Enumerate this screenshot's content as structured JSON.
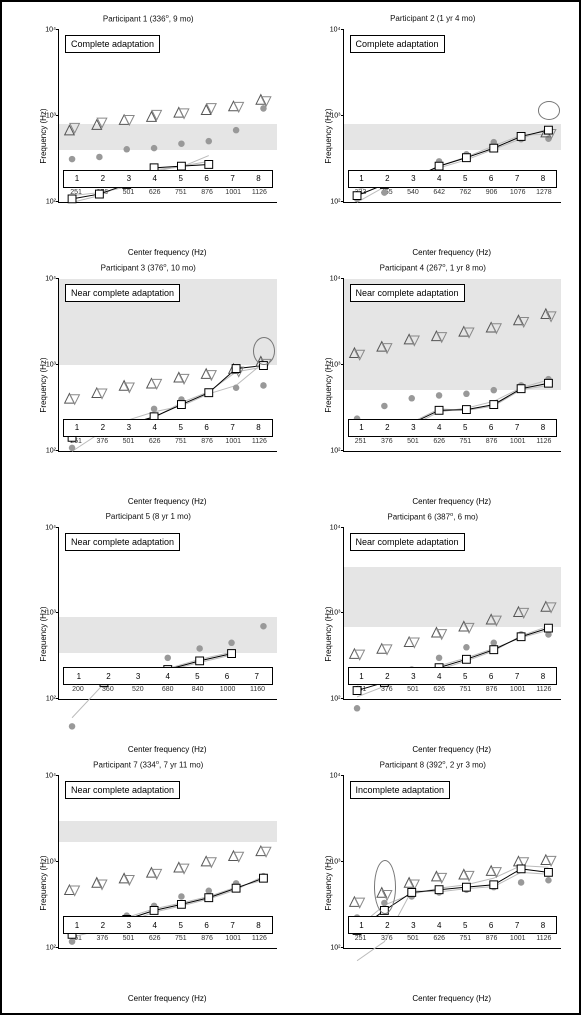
{
  "figure": {
    "background_color": "#ffffff",
    "frame_border_color": "#000000",
    "shade_color": "#e5e5e5",
    "grayline_color": "#bbbbbb",
    "mainline_color": "#000000",
    "marker_fill": "#ffffff",
    "dot_color": "#999999",
    "triangle_color": "#555555",
    "triangle_down_color": "#888888",
    "ellipse_color": "#777777",
    "yaxis_label": "Frequency (Hz)",
    "xaxis_label": "Center frequency (Hz)",
    "y_ticks": [
      100,
      1000,
      10000
    ],
    "y_tick_labels": [
      "10²",
      "10³",
      "10⁴"
    ],
    "x_numbers": [
      1,
      2,
      3,
      4,
      5,
      6,
      7,
      8
    ],
    "panels": [
      {
        "id": "p1",
        "title": "Participant 1 (336°, 9 mo)",
        "badge": "Complete adaptation",
        "x_ticks": [
          251,
          376,
          501,
          626,
          751,
          876,
          1001,
          1126
        ],
        "shade": [
          400,
          800
        ],
        "main": [
          280,
          310,
          380,
          540,
          560,
          580,
          null,
          null
        ],
        "gray1": [
          260,
          300,
          390,
          520,
          550,
          700,
          null,
          null
        ],
        "gray2": [
          300,
          320,
          360,
          500,
          560,
          620,
          null,
          null
        ],
        "tri_up": [
          1200,
          1350,
          1500,
          1600,
          1750,
          1850,
          2000,
          2300
        ],
        "tri_dn": [
          1250,
          1400,
          1480,
          1650,
          1700,
          1900,
          1950,
          2200
        ],
        "dots": [
          650,
          680,
          800,
          820,
          900,
          950,
          1200,
          1900
        ],
        "ellipse": null
      },
      {
        "id": "p2",
        "title": "Participant 2 (1 yr 4 mo)",
        "badge": "Complete adaptation",
        "x_ticks": [
          333,
          455,
          540,
          642,
          762,
          906,
          1076,
          1278
        ],
        "shade": [
          400,
          800
        ],
        "main": [
          300,
          380,
          430,
          560,
          670,
          820,
          1050,
          1200
        ],
        "gray1": [
          260,
          360,
          420,
          560,
          680,
          860,
          1080,
          1100
        ],
        "gray2": [
          340,
          400,
          450,
          540,
          640,
          800,
          1000,
          1250
        ],
        "tri_up": [
          null,
          null,
          null,
          null,
          null,
          null,
          null,
          1150
        ],
        "tri_dn": [
          null,
          null,
          null,
          null,
          null,
          null,
          null,
          1100
        ],
        "dots": [
          280,
          320,
          420,
          620,
          720,
          930,
          990,
          1000
        ],
        "ellipse": {
          "x_idx": 7,
          "y_low": 900,
          "y_high": 1400
        }
      },
      {
        "id": "p3",
        "title": "Participant 3 (376°, 10 mo)",
        "badge": "Near complete adaptation",
        "x_ticks": [
          251,
          376,
          501,
          626,
          751,
          876,
          1001,
          1126
        ],
        "shade": [
          1000,
          10000
        ],
        "main": [
          350,
          400,
          460,
          540,
          700,
          900,
          1500,
          1600
        ],
        "gray1": [
          260,
          380,
          440,
          530,
          730,
          920,
          1400,
          1550
        ],
        "gray2": [
          400,
          420,
          500,
          600,
          680,
          880,
          1050,
          1700
        ],
        "tri_up": [
          800,
          900,
          1050,
          1100,
          1250,
          1350,
          1500,
          1750
        ],
        "tri_dn": [
          780,
          880,
          1000,
          1080,
          1200,
          1300,
          1400,
          1650
        ],
        "dots": [
          280,
          400,
          480,
          640,
          780,
          880,
          1000,
          1050
        ],
        "ellipse": {
          "x_idx": 7,
          "y_low": 1000,
          "y_high": 2000
        }
      },
      {
        "id": "p4",
        "title": "Participant 4 (267°, 1 yr 8 mo)",
        "badge": "Near complete adaptation",
        "x_ticks": [
          251,
          376,
          501,
          626,
          751,
          876,
          1001,
          1126
        ],
        "shade": [
          500,
          10000
        ],
        "main": [
          400,
          430,
          470,
          620,
          630,
          700,
          980,
          1100
        ],
        "gray1": [
          380,
          420,
          450,
          600,
          650,
          750,
          1000,
          1180
        ],
        "gray2": [
          360,
          440,
          480,
          640,
          620,
          680,
          960,
          1050
        ],
        "tri_up": [
          2100,
          2400,
          2800,
          3000,
          3300,
          3600,
          4200,
          4800
        ],
        "tri_dn": [
          2000,
          2300,
          2700,
          2900,
          3200,
          3500,
          4000,
          4500
        ],
        "dots": [
          520,
          680,
          800,
          850,
          880,
          950,
          1050,
          1200
        ],
        "ellipse": null
      },
      {
        "id": "p5",
        "title": "Participant 5 (8 yr 1 mo)",
        "badge": "Near complete adaptation",
        "x_ticks": [
          200,
          360,
          520,
          680,
          840,
          1000,
          1160
        ],
        "shade": [
          350,
          900
        ],
        "main": [
          null,
          380,
          420,
          500,
          600,
          700,
          null
        ],
        "gray1": [
          180,
          370,
          430,
          510,
          620,
          720,
          null
        ],
        "gray2": [
          null,
          390,
          440,
          490,
          580,
          680,
          null
        ],
        "tri_up": [
          null,
          null,
          null,
          null,
          null,
          null,
          null
        ],
        "tri_dn": [
          null,
          null,
          null,
          null,
          null,
          null,
          null
        ],
        "dots": [
          150,
          360,
          480,
          640,
          780,
          880,
          1250
        ],
        "ellipse": null
      },
      {
        "id": "p6",
        "title": "Participant 6 (387°, 6 mo)",
        "badge": "Near complete adaptation",
        "x_ticks": [
          251,
          376,
          501,
          626,
          751,
          876,
          1001,
          1126
        ],
        "shade": [
          700,
          3500
        ],
        "main": [
          320,
          380,
          430,
          520,
          620,
          760,
          1000,
          1200
        ],
        "gray1": [
          280,
          350,
          400,
          500,
          600,
          740,
          1020,
          1250
        ],
        "gray2": [
          360,
          400,
          450,
          540,
          640,
          780,
          980,
          1150
        ],
        "tri_up": [
          700,
          780,
          900,
          1100,
          1250,
          1450,
          1700,
          1900
        ],
        "tri_dn": [
          680,
          760,
          880,
          1050,
          1200,
          1400,
          1650,
          1850
        ],
        "dots": [
          220,
          420,
          500,
          640,
          800,
          880,
          1050,
          1050
        ],
        "ellipse": null
      },
      {
        "id": "p7",
        "title": "Participant 7 (334°, 7 yr 11 mo)",
        "badge": "Near complete adaptation",
        "x_ticks": [
          251,
          376,
          501,
          626,
          751,
          876,
          1001,
          1126
        ],
        "shade": [
          1700,
          3000
        ],
        "main": [
          350,
          400,
          480,
          580,
          660,
          760,
          930,
          1150
        ],
        "gray1": [
          330,
          380,
          450,
          560,
          640,
          740,
          900,
          1200
        ],
        "gray2": [
          370,
          420,
          500,
          600,
          680,
          780,
          950,
          1100
        ],
        "tri_up": [
          900,
          1050,
          1150,
          1300,
          1450,
          1650,
          1850,
          2050
        ],
        "tri_dn": [
          880,
          1000,
          1100,
          1250,
          1400,
          1600,
          1800,
          2000
        ],
        "dots": [
          300,
          380,
          520,
          640,
          780,
          880,
          1030,
          1200
        ],
        "ellipse": null
      },
      {
        "id": "p8",
        "title": "Participant 8 (392°, 2 yr 3 mo)",
        "badge": "Incomplete adaptation",
        "x_ticks": [
          251,
          376,
          501,
          626,
          751,
          876,
          1001,
          1126
        ],
        "shade": null,
        "main": [
          380,
          580,
          850,
          900,
          950,
          1000,
          1400,
          1300
        ],
        "gray1": [
          400,
          650,
          820,
          930,
          1000,
          1150,
          1500,
          1450
        ],
        "gray2": [
          200,
          300,
          880,
          860,
          920,
          960,
          1300,
          1250
        ],
        "tri_up": [
          700,
          850,
          1050,
          1200,
          1250,
          1350,
          1650,
          1700
        ],
        "tri_dn": [
          680,
          800,
          1000,
          1150,
          1200,
          1300,
          1600,
          1650
        ],
        "dots": [
          500,
          680,
          780,
          850,
          900,
          950,
          1050,
          1100
        ],
        "ellipse": {
          "x_idx": 1,
          "y_low": 250,
          "y_high": 1000
        }
      }
    ]
  }
}
